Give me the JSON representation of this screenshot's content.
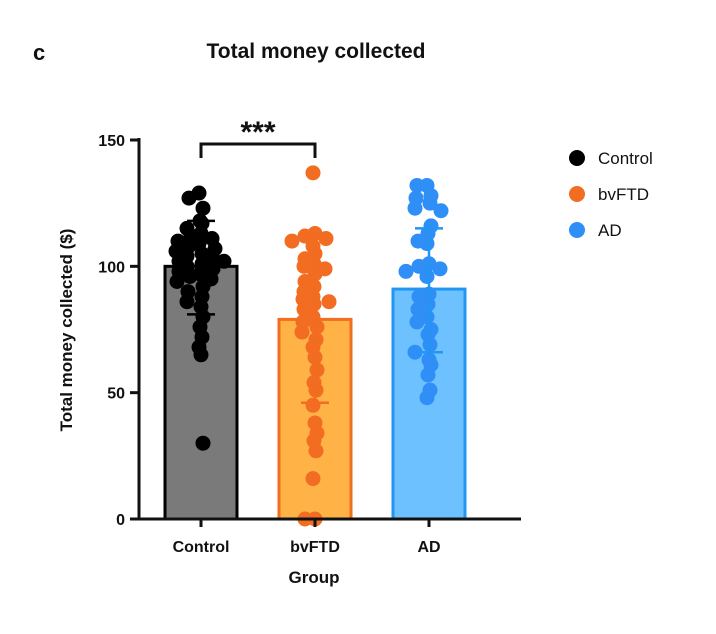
{
  "chart_data": {
    "type": "bar",
    "panel_label": "c",
    "title": "Total money collected",
    "xlabel": "Group",
    "ylabel": "Total money collected ($)",
    "ylim": [
      0,
      150
    ],
    "yticks": [
      "0",
      "50",
      "100",
      "150"
    ],
    "categories": [
      "Control",
      "bvFTD",
      "AD"
    ],
    "means": [
      100,
      79,
      91
    ],
    "sd_low": [
      81,
      46,
      66
    ],
    "sd_high": [
      118,
      112,
      115
    ],
    "colors": {
      "bar_fill": [
        "#7a7a7a",
        "#ffb347",
        "#6ec1ff"
      ],
      "bar_stroke": [
        "#000000",
        "#f26d21",
        "#2196f3"
      ],
      "points": [
        "#000000",
        "#f26d21",
        "#2f8ff7"
      ]
    },
    "points": [
      [
        129,
        127,
        123,
        118,
        117,
        115,
        113,
        112,
        111,
        110,
        109,
        108,
        107,
        106,
        105,
        104,
        103,
        102,
        102,
        101,
        100,
        99,
        98,
        97,
        96,
        95,
        94,
        92,
        90,
        88,
        86,
        84,
        80,
        76,
        72,
        68,
        65,
        30
      ],
      [
        137,
        113,
        112,
        111,
        110,
        108,
        105,
        103,
        101,
        100,
        99,
        97,
        94,
        92,
        90,
        88,
        87,
        86,
        85,
        83,
        80,
        78,
        76,
        74,
        71,
        68,
        64,
        59,
        54,
        51,
        45,
        38,
        34,
        31,
        27,
        16,
        0,
        0
      ],
      [
        132,
        132,
        128,
        127,
        125,
        123,
        122,
        116,
        113,
        110,
        109,
        101,
        100,
        99,
        98,
        96,
        89,
        88,
        85,
        83,
        80,
        78,
        75,
        73,
        69,
        66,
        63,
        61,
        57,
        51,
        48
      ]
    ],
    "significance": "***",
    "legend": {
      "position": "right",
      "entries": [
        {
          "name": "Control",
          "color": "#000000"
        },
        {
          "name": "bvFTD",
          "color": "#f26d21"
        },
        {
          "name": "AD",
          "color": "#2f8ff7"
        }
      ]
    }
  }
}
